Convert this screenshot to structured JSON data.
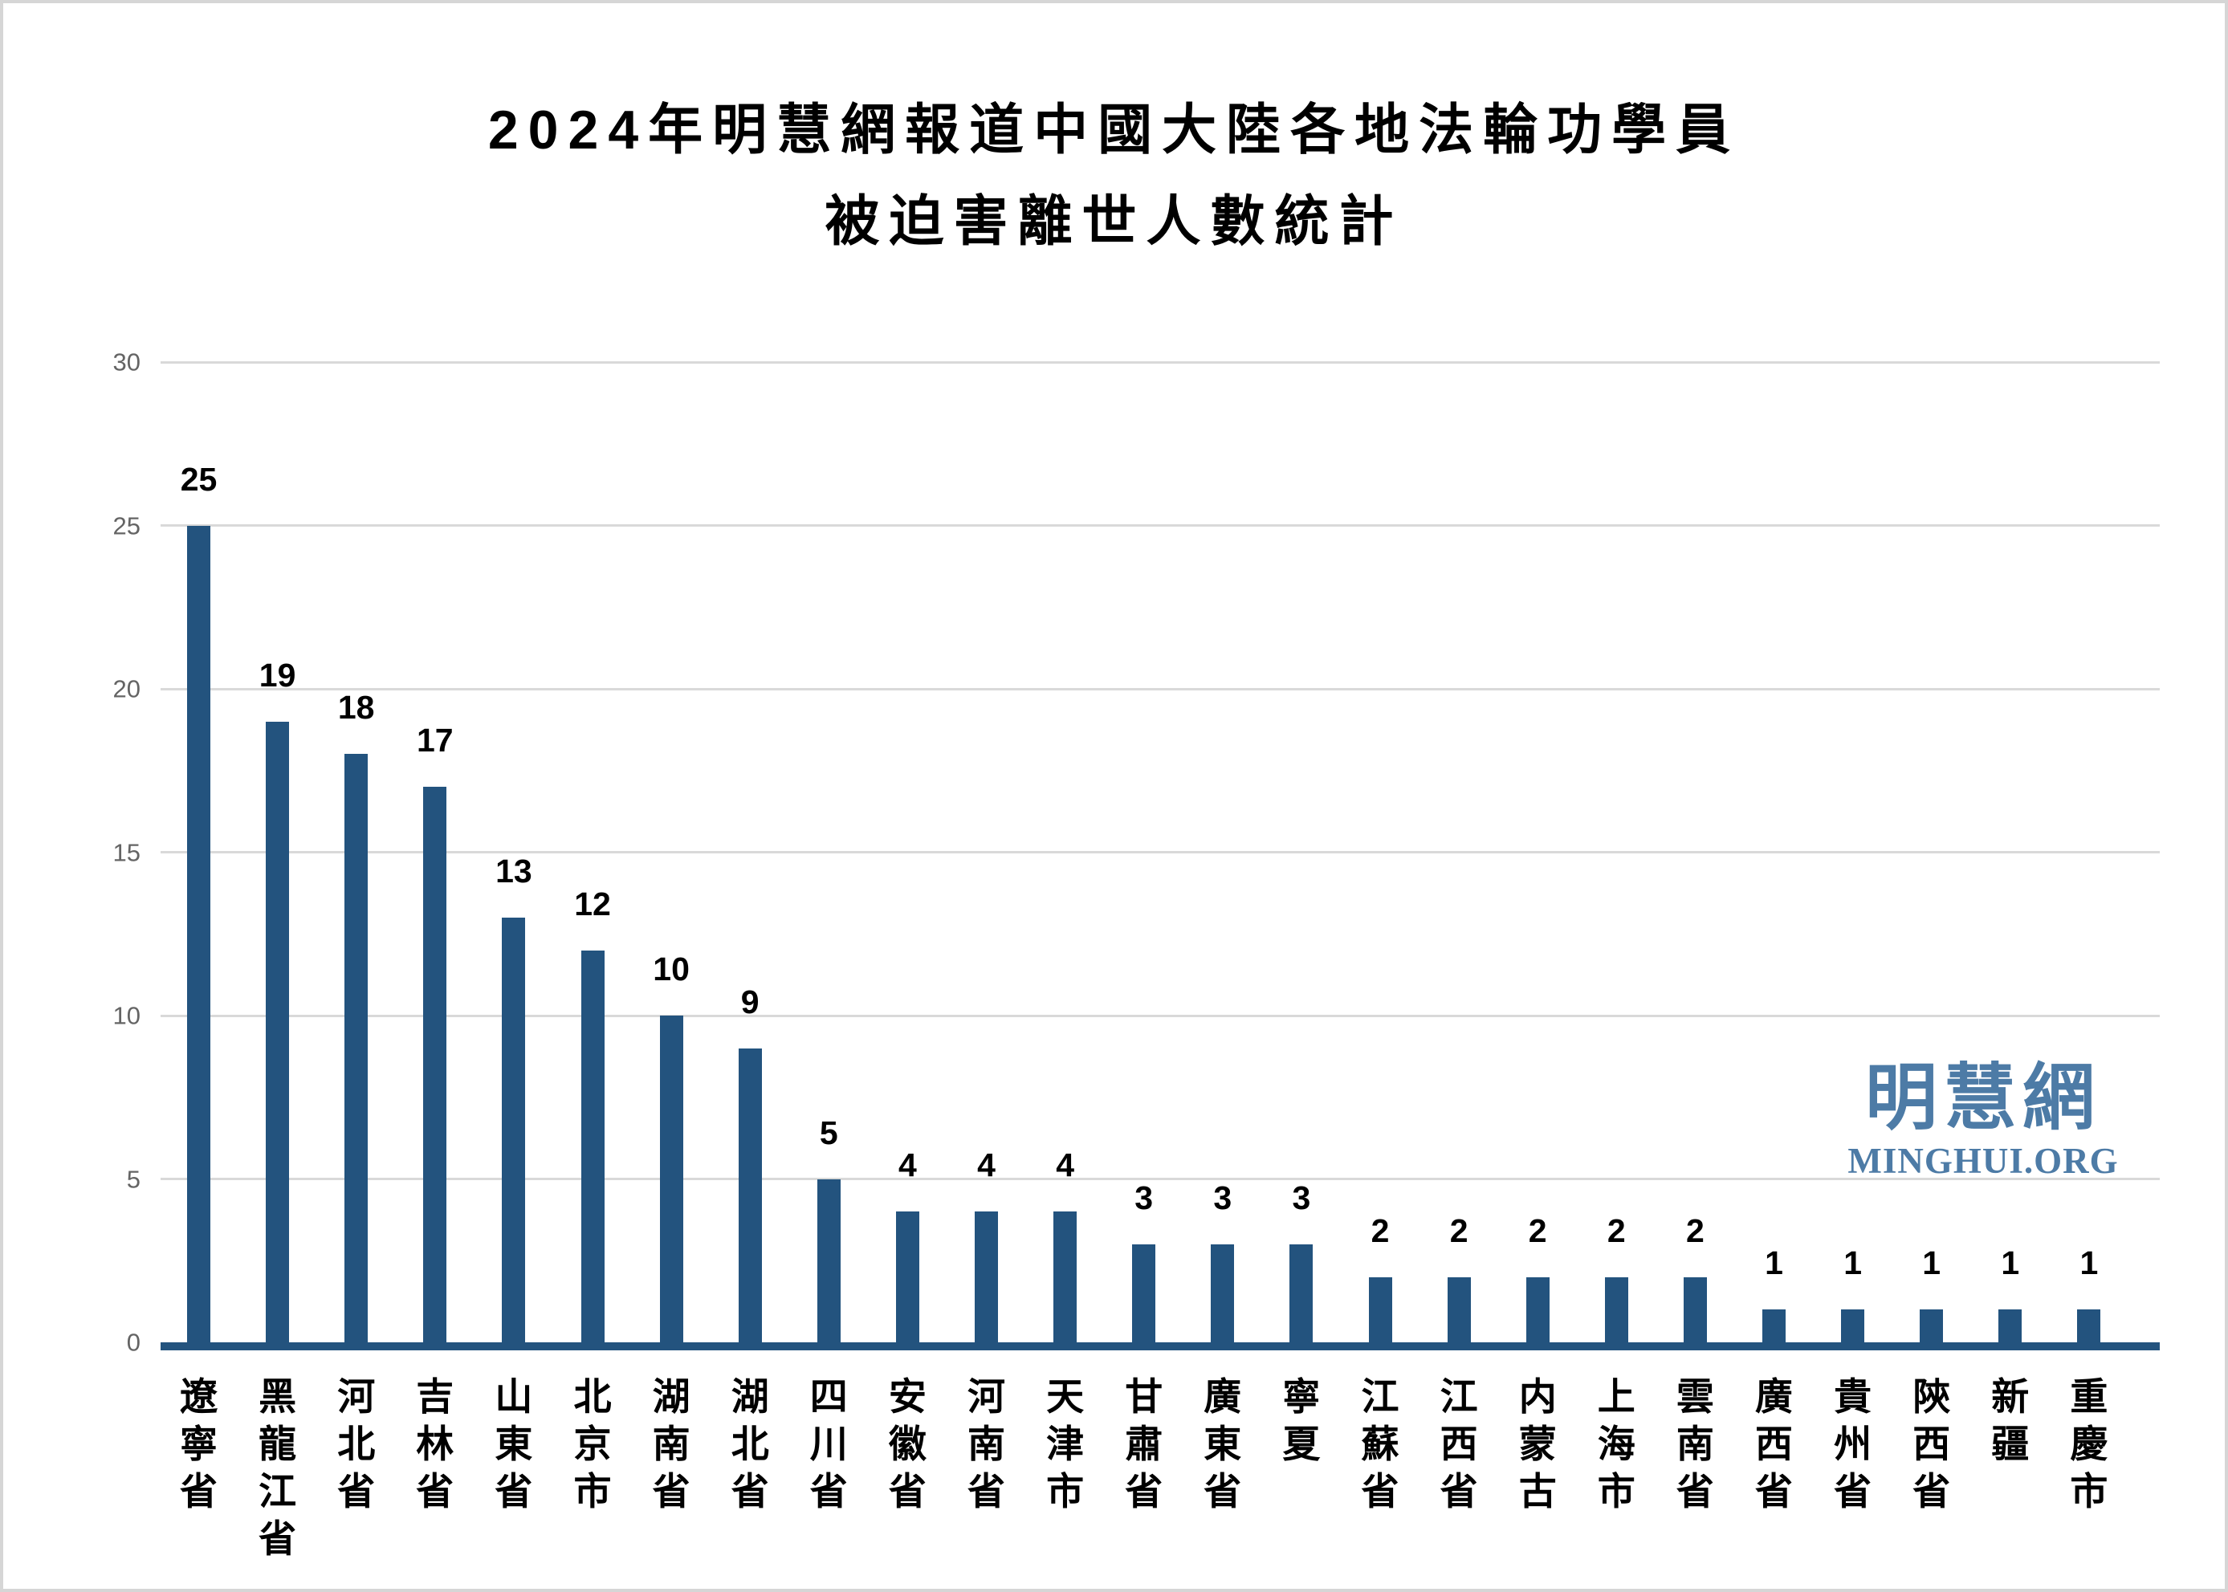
{
  "title": {
    "line1": "2024年明慧網報道中國大陸各地法輪功學員",
    "line2": "被迫害離世人數統計"
  },
  "watermark": {
    "cjk": "明慧網",
    "latin": "MINGHUI.ORG"
  },
  "colors": {
    "bar": "#23537e",
    "axis_line": "#23537e",
    "gridline": "#d9d9d9",
    "tick_label": "#646464",
    "text": "#000000",
    "watermark": "#4d7ba6",
    "frame_border": "#d6d6d6",
    "background": "#ffffff"
  },
  "chart_data": {
    "type": "bar",
    "title": "2024年明慧網報道中國大陸各地法輪功學員被迫害離世人數統計",
    "categories": [
      "遼寧省",
      "黑龍江省",
      "河北省",
      "吉林省",
      "山東省",
      "北京市",
      "湖南省",
      "湖北省",
      "四川省",
      "安徽省",
      "河南省",
      "天津市",
      "甘肅省",
      "廣東省",
      "寧夏",
      "江蘇省",
      "江西省",
      "内蒙古",
      "上海市",
      "雲南省",
      "廣西省",
      "貴州省",
      "陝西省",
      "新疆",
      "重慶市"
    ],
    "values": [
      25,
      19,
      18,
      17,
      13,
      12,
      10,
      9,
      5,
      4,
      4,
      4,
      3,
      3,
      3,
      2,
      2,
      2,
      2,
      2,
      1,
      1,
      1,
      1,
      1
    ],
    "data_labels_shown": true,
    "xlabel": "",
    "ylabel": "",
    "ylim": [
      0,
      30
    ],
    "yticks": [
      0,
      5,
      10,
      15,
      20,
      25,
      30
    ],
    "grid": true,
    "legend": "none",
    "bar_color": "#23537e",
    "x_label_orientation": "vertical"
  }
}
